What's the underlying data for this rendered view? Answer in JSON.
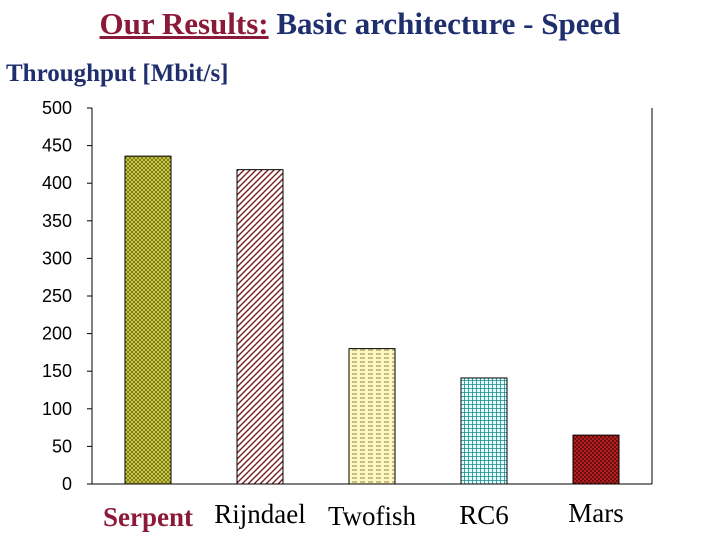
{
  "slide": {
    "title_lead": "Our Results:",
    "title_rest": "Basic architecture - Speed"
  },
  "chart_data": {
    "type": "bar",
    "title": "Our Results: Basic architecture - Speed",
    "ylabel": "Throughput [Mbit/s]",
    "xlabel": "",
    "categories": [
      "Serpent",
      "Rijndael",
      "Twofish",
      "RC6",
      "Mars"
    ],
    "values": [
      436,
      418,
      180,
      141,
      65
    ],
    "ylim": [
      0,
      500
    ],
    "yticks": [
      0,
      50,
      100,
      150,
      200,
      250,
      300,
      350,
      400,
      450,
      500
    ],
    "grid": false,
    "legend": "none",
    "bar_fills": [
      {
        "pattern": "diag-cross",
        "fg": "#6b6b00",
        "bg": "#d8d860"
      },
      {
        "pattern": "diag",
        "fg": "#7a1d1d",
        "bg": "#ffffff"
      },
      {
        "pattern": "dashed-h",
        "fg": "#8c7a2a",
        "bg": "#fdf7c4"
      },
      {
        "pattern": "grid",
        "fg": "#1a8a8a",
        "bg": "#e6fbfb"
      },
      {
        "pattern": "check",
        "fg": "#6a0f0f",
        "bg": "#b52020"
      }
    ],
    "label_colors": [
      "#8b1a3a",
      "#000000",
      "#000000",
      "#000000",
      "#000000"
    ],
    "label_bold": [
      true,
      false,
      false,
      false,
      false
    ]
  }
}
